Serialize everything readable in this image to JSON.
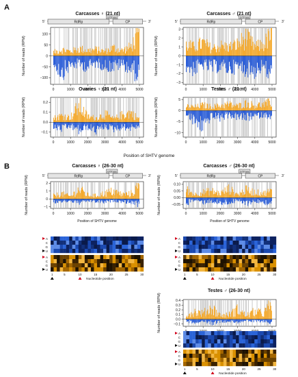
{
  "panel_labels": [
    "A",
    "B"
  ],
  "genome": {
    "five_prime": "5'",
    "three_prime": "3'",
    "rdrp": "RdRp",
    "gtpase": "GTPase",
    "cp": "CP"
  },
  "shared_xlabel": "Position of SHTV genome",
  "ylabel": "Number of reads (RPM)",
  "heatmap_xlabel": "Nucleotide position",
  "heatmap_xticks": [
    "1",
    "5",
    "10",
    "15",
    "20",
    "25",
    "30"
  ],
  "heatmap_rows": [
    "A",
    "C",
    "G",
    "U"
  ],
  "colors": {
    "sense": "#f5a623",
    "antisense": "#2156d6",
    "background": "#c8c8c8"
  },
  "chart_data": [
    {
      "id": "a1",
      "type": "bar",
      "title": "Carcasses ♀ (21 nt)",
      "xlim": [
        0,
        5000
      ],
      "ylim": [
        -130,
        130
      ],
      "xticks": [
        "0",
        "1000",
        "2000",
        "3000",
        "4000",
        "5000"
      ],
      "yticks": [
        "100",
        "50",
        "0",
        "−50",
        "−100"
      ],
      "x": [
        0,
        500,
        1000,
        1500,
        2000,
        2500,
        3000,
        3500,
        4000,
        4500,
        4900
      ],
      "sense": [
        20,
        35,
        25,
        40,
        30,
        35,
        25,
        45,
        30,
        50,
        110
      ],
      "antisense": [
        -40,
        -90,
        -50,
        -45,
        -60,
        -40,
        -55,
        -60,
        -45,
        -70,
        -100
      ]
    },
    {
      "id": "a2",
      "type": "bar",
      "title": "Carcasses ♂ (21 nt)",
      "xlim": [
        0,
        5000
      ],
      "ylim": [
        -3.2,
        3.2
      ],
      "xticks": [
        "0",
        "1000",
        "2000",
        "3000",
        "4000",
        "5000"
      ],
      "yticks": [
        "3",
        "2",
        "1",
        "0",
        "−1",
        "−2",
        "−3"
      ],
      "x": [
        0,
        500,
        1000,
        1500,
        2000,
        2500,
        3000,
        3500,
        4000,
        4500,
        4900
      ],
      "sense": [
        1.5,
        1.2,
        1.8,
        1.0,
        1.4,
        1.2,
        1.6,
        2.5,
        1.3,
        1.5,
        2.8
      ],
      "antisense": [
        -1.5,
        -1.8,
        -1.2,
        -1.6,
        -1.4,
        -1.7,
        -1.5,
        -1.8,
        -2.0,
        -1.3,
        -2.8
      ]
    },
    {
      "id": "a3",
      "type": "bar",
      "title": "Ovaries ♀ (21 nt)",
      "xlim": [
        0,
        5000
      ],
      "ylim": [
        -0.15,
        0.25
      ],
      "xticks": [
        "0",
        "1000",
        "2000",
        "3000",
        "4000",
        "5000"
      ],
      "yticks": [
        "0.2",
        "0.1",
        "0.0",
        "−0.1"
      ],
      "x": [
        0,
        500,
        1000,
        1500,
        2000,
        2500,
        3000,
        3500,
        4000,
        4500,
        4900
      ],
      "sense": [
        0.05,
        0.08,
        0.06,
        0.2,
        0.07,
        0.05,
        0.1,
        0.04,
        0.09,
        0.12,
        0.05
      ],
      "antisense": [
        -0.06,
        -0.08,
        -0.05,
        -0.1,
        -0.06,
        -0.1,
        -0.05,
        -0.08,
        -0.06,
        -0.07,
        -0.05
      ]
    },
    {
      "id": "a4",
      "type": "bar",
      "title": "Testes ♂ (21 nt)",
      "xlim": [
        0,
        5000
      ],
      "ylim": [
        -12,
        6
      ],
      "xticks": [
        "0",
        "1000",
        "2000",
        "3000",
        "4000",
        "5000"
      ],
      "yticks": [
        "5",
        "0",
        "−5",
        "−10"
      ],
      "x": [
        0,
        500,
        1000,
        1500,
        2000,
        2500,
        3000,
        3500,
        4000,
        4500,
        4900
      ],
      "sense": [
        2.5,
        2.0,
        3.0,
        2.2,
        2.8,
        3.5,
        2.5,
        4.0,
        3.0,
        3.2,
        4.5
      ],
      "antisense": [
        -2.0,
        -6.0,
        -8.0,
        -3.0,
        -4.0,
        -2.5,
        -3.5,
        -4.0,
        -3.0,
        -2.5,
        -3.0
      ]
    },
    {
      "id": "b1",
      "type": "bar",
      "title": "Carcasses ♀ (26-30 nt)",
      "xlim": [
        0,
        5000
      ],
      "ylim": [
        -1.2,
        2.2
      ],
      "xticks": [
        "0",
        "1000",
        "2000",
        "3000",
        "4000",
        "5000"
      ],
      "yticks": [
        "2",
        "1",
        "0",
        "−1"
      ],
      "xlabel": "Position of SHTV genome",
      "x": [
        0,
        500,
        1000,
        1500,
        2000,
        2500,
        3000,
        3500,
        4000,
        4500,
        4900
      ],
      "sense": [
        0.5,
        0.8,
        0.4,
        1.5,
        0.6,
        0.5,
        0.9,
        1.2,
        0.7,
        0.8,
        1.8
      ],
      "antisense": [
        -0.5,
        -0.4,
        -0.3,
        -0.6,
        -0.3,
        -0.4,
        -0.5,
        -0.3,
        -0.4,
        -0.5,
        -0.8
      ]
    },
    {
      "id": "b2",
      "type": "bar",
      "title": "Carcasses ♂ (26-30 nt)",
      "xlim": [
        0,
        5000
      ],
      "ylim": [
        -0.08,
        0.12
      ],
      "xticks": [
        "0",
        "1000",
        "2000",
        "3000",
        "4000",
        "5000"
      ],
      "yticks": [
        "0.10",
        "0.05",
        "0.00",
        "−0.05"
      ],
      "xlabel": "Position of SHTV genome",
      "x": [
        0,
        500,
        1000,
        1500,
        2000,
        2500,
        3000,
        3500,
        4000,
        4500,
        4900
      ],
      "sense": [
        0.08,
        0.03,
        0.05,
        0.06,
        0.04,
        0.08,
        0.03,
        0.07,
        0.05,
        0.04,
        0.06
      ],
      "antisense": [
        -0.05,
        -0.02,
        -0.04,
        -0.03,
        -0.05,
        -0.04,
        -0.03,
        -0.05,
        -0.03,
        -0.04,
        -0.05
      ]
    },
    {
      "id": "b3",
      "type": "bar",
      "title": "Testes ♂ (26-30 nt)",
      "xlim": [
        0,
        5000
      ],
      "ylim": [
        -0.15,
        0.42
      ],
      "xticks": [
        "0",
        "1000",
        "2000",
        "3000",
        "4000",
        "5000"
      ],
      "yticks": [
        "0.4",
        "0.3",
        "0.2",
        "0.1",
        "0.0",
        "−0.1"
      ],
      "xlabel": "Position of SHTV genome",
      "x": [
        0,
        500,
        1000,
        1500,
        2000,
        2500,
        3000,
        3500,
        4000,
        4500,
        4900
      ],
      "sense": [
        0.1,
        0.2,
        0.15,
        0.3,
        0.1,
        0.12,
        0.25,
        0.1,
        0.2,
        0.15,
        0.35
      ],
      "antisense": [
        -0.05,
        -0.08,
        -0.04,
        -0.1,
        -0.06,
        -0.05,
        -0.07,
        -0.04,
        -0.06,
        -0.05,
        -0.08
      ]
    }
  ]
}
